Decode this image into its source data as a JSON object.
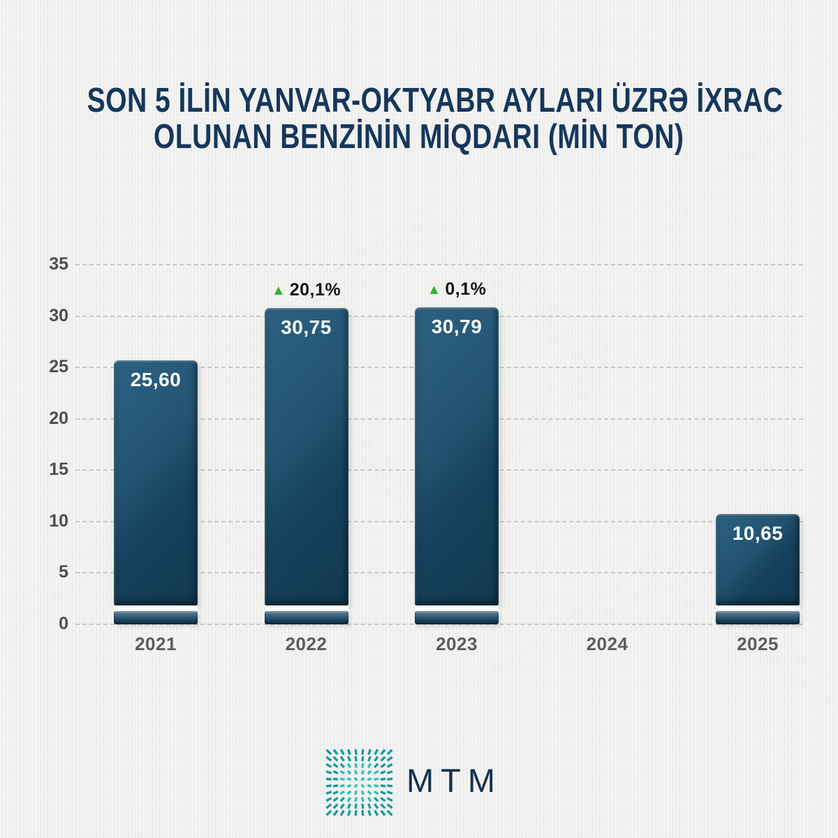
{
  "title": {
    "line1": "SON 5 İLİN YANVAR-OKTYABR AYLARI ÜZRƏ İXRAC",
    "line2": "OLUNAN BENZİNİN MİQDARI (MİN TON)"
  },
  "chart_data": {
    "type": "bar",
    "title": "SON 5 İLİN YANVAR-OKTYABR AYLARI ÜZRƏ İXRAC OLUNAN BENZİNİN MİQDARI (MİN TON)",
    "categories": [
      "2021",
      "2022",
      "2023",
      "2024",
      "2025"
    ],
    "values": [
      25.6,
      30.75,
      30.79,
      null,
      10.65
    ],
    "bars": [
      {
        "category": "2021",
        "value": 25.6,
        "label": "25,60",
        "change": null
      },
      {
        "category": "2022",
        "value": 30.75,
        "label": "30,75",
        "change": {
          "icon": "▲",
          "text": "20,1%",
          "direction": "up"
        }
      },
      {
        "category": "2023",
        "value": 30.79,
        "label": "30,79",
        "change": {
          "icon": "▲",
          "text": "0,1%",
          "direction": "up"
        }
      },
      {
        "category": "2024",
        "value": null,
        "label": null,
        "change": null
      },
      {
        "category": "2025",
        "value": 10.65,
        "label": "10,65",
        "change": null
      }
    ],
    "yticks": [
      35,
      30,
      25,
      20,
      15,
      10,
      5,
      0
    ],
    "ylim": [
      0,
      35
    ],
    "grid": "dashed-horizontal",
    "legend": null
  },
  "footer": {
    "logo_text": "MTM"
  },
  "colors": {
    "background": "#efefed",
    "title": "#15375c",
    "bar_gradient_light": "#2d6181",
    "bar_gradient_dark": "#123950",
    "value_label": "#ffffff",
    "axis_label": "#4d4d4d",
    "gridline": "#c9c9c7",
    "badge_text": "#161616",
    "badge_up_green": "#2db52d",
    "logo_teal": "#1fb0b2",
    "logo_text_color": "#14304f"
  }
}
